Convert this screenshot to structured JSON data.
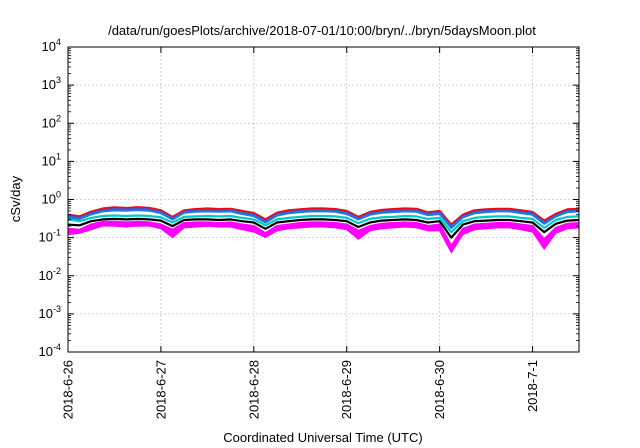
{
  "chart_data": {
    "type": "area",
    "title": "/data/run/goesPlots/archive/2018-07-01/10:00/bryn/../bryn/5daysMoon.plot",
    "xlabel": "Coordinated Universal Time (UTC)",
    "ylabel": "cSv/day",
    "yscale": "log",
    "ylim": [
      0.0001,
      10000
    ],
    "xlim": [
      "2018-06-26T00:00",
      "2018-07-01T12:00"
    ],
    "grid": true,
    "x_ticks": [
      "2018-6-26",
      "2018-6-27",
      "2018-6-28",
      "2018-6-29",
      "2018-6-30",
      "2018-7-1"
    ],
    "y_ticks": [
      {
        "value": 0.0001,
        "base": "10",
        "exp": "-4"
      },
      {
        "value": 0.001,
        "base": "10",
        "exp": "-3"
      },
      {
        "value": 0.01,
        "base": "10",
        "exp": "-2"
      },
      {
        "value": 0.1,
        "base": "10",
        "exp": "-1"
      },
      {
        "value": 1,
        "base": "10",
        "exp": "0"
      },
      {
        "value": 10,
        "base": "10",
        "exp": "1"
      },
      {
        "value": 100,
        "base": "10",
        "exp": "2"
      },
      {
        "value": 1000,
        "base": "10",
        "exp": "3"
      },
      {
        "value": 10000,
        "base": "10",
        "exp": "4"
      }
    ],
    "x": [
      "2018-06-26T00:00",
      "2018-06-26T03:00",
      "2018-06-26T06:00",
      "2018-06-26T09:00",
      "2018-06-26T12:00",
      "2018-06-26T15:00",
      "2018-06-26T18:00",
      "2018-06-26T21:00",
      "2018-06-27T00:00",
      "2018-06-27T03:00",
      "2018-06-27T06:00",
      "2018-06-27T09:00",
      "2018-06-27T12:00",
      "2018-06-27T15:00",
      "2018-06-27T18:00",
      "2018-06-27T21:00",
      "2018-06-28T00:00",
      "2018-06-28T03:00",
      "2018-06-28T06:00",
      "2018-06-28T09:00",
      "2018-06-28T12:00",
      "2018-06-28T15:00",
      "2018-06-28T18:00",
      "2018-06-28T21:00",
      "2018-06-29T00:00",
      "2018-06-29T03:00",
      "2018-06-29T06:00",
      "2018-06-29T09:00",
      "2018-06-29T12:00",
      "2018-06-29T15:00",
      "2018-06-29T18:00",
      "2018-06-29T21:00",
      "2018-06-30T00:00",
      "2018-06-30T03:00",
      "2018-06-30T06:00",
      "2018-06-30T09:00",
      "2018-06-30T12:00",
      "2018-06-30T15:00",
      "2018-06-30T18:00",
      "2018-06-30T21:00",
      "2018-07-01T00:00",
      "2018-07-01T03:00",
      "2018-07-01T06:00",
      "2018-07-01T09:00",
      "2018-07-01T12:00"
    ],
    "series": [
      {
        "color": "#ff00ff",
        "values": [
          0.17,
          0.16,
          0.22,
          0.26,
          0.26,
          0.25,
          0.26,
          0.25,
          0.22,
          0.16,
          0.24,
          0.25,
          0.25,
          0.24,
          0.25,
          0.22,
          0.2,
          0.13,
          0.2,
          0.22,
          0.24,
          0.25,
          0.25,
          0.24,
          0.22,
          0.15,
          0.2,
          0.23,
          0.24,
          0.25,
          0.24,
          0.2,
          0.22,
          0.06,
          0.17,
          0.22,
          0.23,
          0.24,
          0.24,
          0.22,
          0.2,
          0.09,
          0.18,
          0.23,
          0.24
        ],
        "min": [
          0.12,
          0.13,
          0.16,
          0.2,
          0.2,
          0.19,
          0.2,
          0.2,
          0.17,
          0.1,
          0.18,
          0.19,
          0.2,
          0.19,
          0.19,
          0.16,
          0.14,
          0.1,
          0.15,
          0.17,
          0.18,
          0.19,
          0.19,
          0.18,
          0.16,
          0.09,
          0.15,
          0.17,
          0.18,
          0.19,
          0.18,
          0.15,
          0.15,
          0.04,
          0.12,
          0.16,
          0.17,
          0.18,
          0.18,
          0.16,
          0.14,
          0.05,
          0.13,
          0.17,
          0.18
        ]
      },
      {
        "color": "#000000",
        "values": [
          0.22,
          0.21,
          0.27,
          0.3,
          0.31,
          0.3,
          0.31,
          0.3,
          0.28,
          0.2,
          0.29,
          0.3,
          0.3,
          0.29,
          0.3,
          0.27,
          0.25,
          0.17,
          0.25,
          0.27,
          0.29,
          0.3,
          0.3,
          0.29,
          0.27,
          0.19,
          0.25,
          0.28,
          0.29,
          0.3,
          0.29,
          0.25,
          0.27,
          0.1,
          0.22,
          0.27,
          0.28,
          0.29,
          0.29,
          0.27,
          0.25,
          0.14,
          0.23,
          0.28,
          0.29
        ]
      },
      {
        "color": "#00c8c8",
        "values": [
          0.3,
          0.27,
          0.33,
          0.37,
          0.38,
          0.37,
          0.38,
          0.37,
          0.34,
          0.25,
          0.35,
          0.36,
          0.37,
          0.36,
          0.37,
          0.33,
          0.3,
          0.21,
          0.3,
          0.33,
          0.35,
          0.37,
          0.37,
          0.36,
          0.33,
          0.24,
          0.31,
          0.34,
          0.35,
          0.37,
          0.36,
          0.31,
          0.33,
          0.14,
          0.27,
          0.33,
          0.35,
          0.36,
          0.36,
          0.33,
          0.31,
          0.18,
          0.29,
          0.35,
          0.36
        ]
      },
      {
        "color": "#ff0000",
        "values": [
          0.4,
          0.36,
          0.48,
          0.58,
          0.62,
          0.6,
          0.63,
          0.6,
          0.52,
          0.35,
          0.52,
          0.56,
          0.58,
          0.56,
          0.57,
          0.5,
          0.44,
          0.3,
          0.45,
          0.52,
          0.55,
          0.58,
          0.58,
          0.56,
          0.5,
          0.35,
          0.47,
          0.53,
          0.56,
          0.58,
          0.57,
          0.46,
          0.5,
          0.22,
          0.4,
          0.52,
          0.55,
          0.57,
          0.57,
          0.52,
          0.47,
          0.28,
          0.42,
          0.55,
          0.57
        ]
      },
      {
        "color": "#4b50c8",
        "values": [
          0.36,
          0.33,
          0.44,
          0.53,
          0.56,
          0.55,
          0.57,
          0.55,
          0.47,
          0.32,
          0.48,
          0.51,
          0.53,
          0.51,
          0.52,
          0.45,
          0.4,
          0.27,
          0.41,
          0.47,
          0.5,
          0.53,
          0.53,
          0.51,
          0.45,
          0.32,
          0.43,
          0.48,
          0.51,
          0.53,
          0.52,
          0.42,
          0.45,
          0.2,
          0.36,
          0.47,
          0.5,
          0.52,
          0.52,
          0.47,
          0.43,
          0.25,
          0.38,
          0.5,
          0.52
        ]
      },
      {
        "color": "#1e78dc",
        "values": [
          0.34,
          0.31,
          0.41,
          0.49,
          0.52,
          0.51,
          0.53,
          0.51,
          0.44,
          0.3,
          0.45,
          0.48,
          0.49,
          0.48,
          0.49,
          0.42,
          0.37,
          0.25,
          0.38,
          0.44,
          0.47,
          0.49,
          0.49,
          0.48,
          0.42,
          0.3,
          0.4,
          0.45,
          0.47,
          0.49,
          0.48,
          0.39,
          0.42,
          0.18,
          0.34,
          0.44,
          0.47,
          0.49,
          0.49,
          0.44,
          0.4,
          0.23,
          0.36,
          0.47,
          0.49
        ]
      }
    ]
  }
}
